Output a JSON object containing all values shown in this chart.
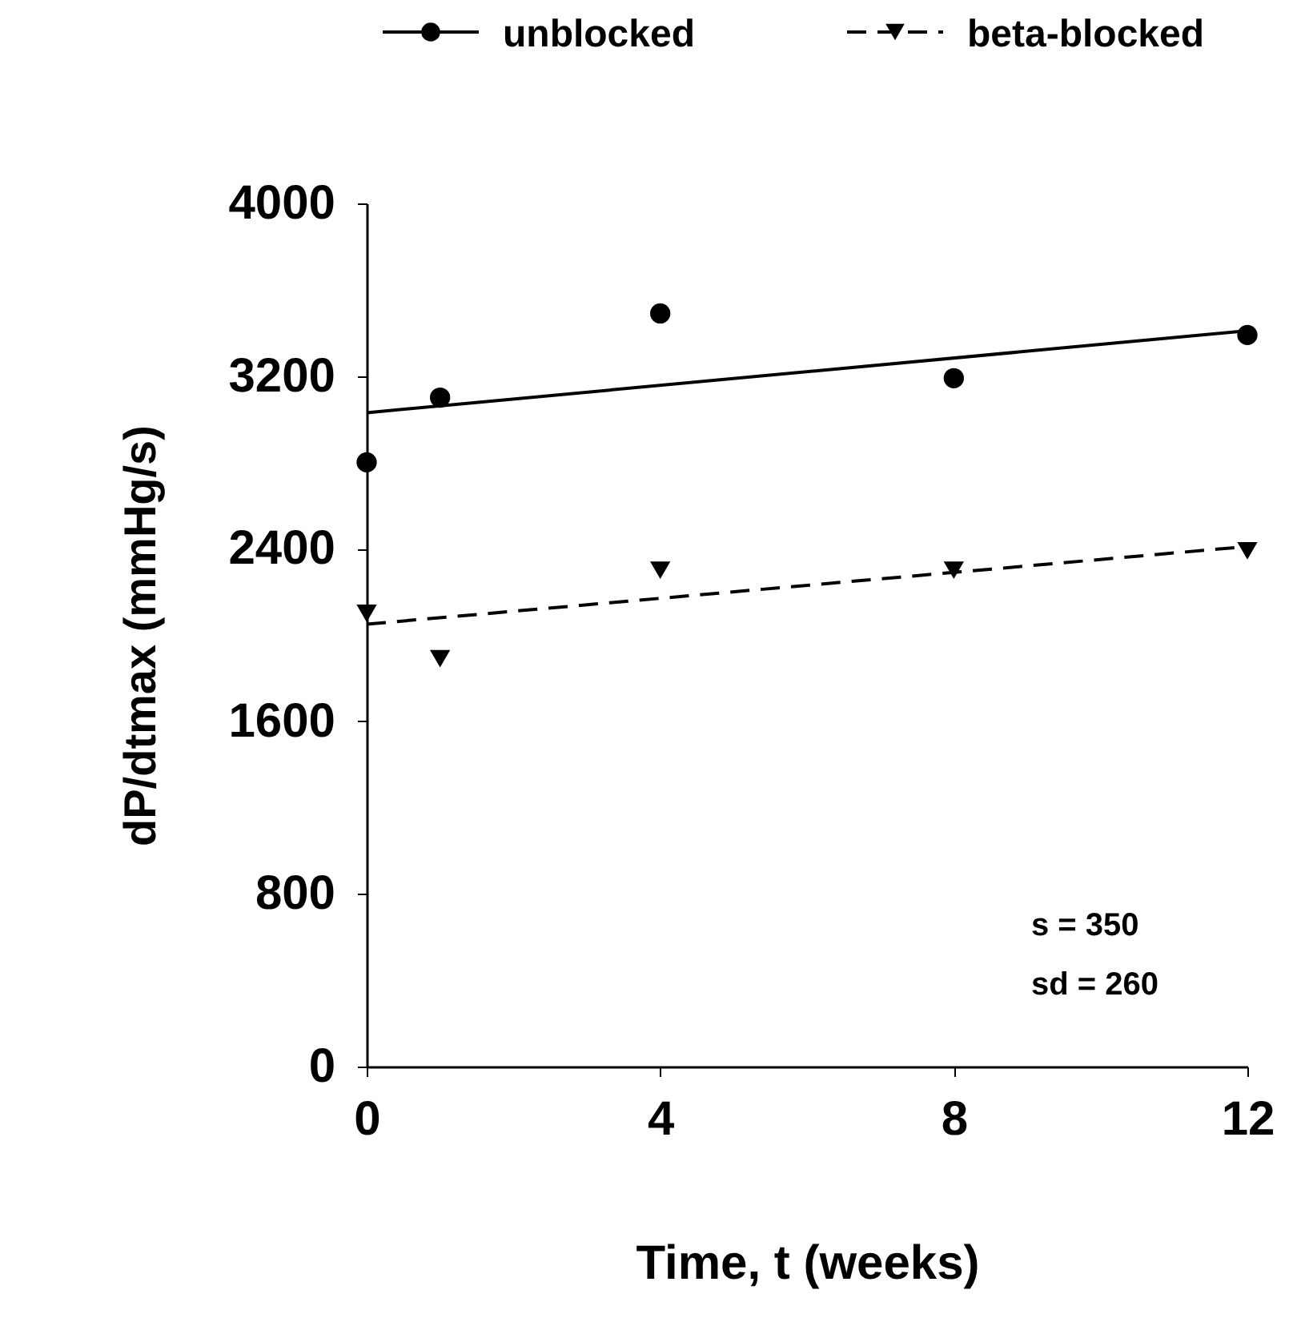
{
  "chart_data": {
    "type": "scatter",
    "xlabel": "Time, t (weeks)",
    "ylabel": "dP/dtmax (mmHg/s)",
    "xlim": [
      0,
      12
    ],
    "xticks": [
      0,
      4,
      8,
      12
    ],
    "ylim": [
      0,
      4000
    ],
    "yticks": [
      0,
      800,
      1600,
      2400,
      3200,
      4000
    ],
    "grid": false,
    "legend": "top right",
    "series": [
      {
        "name": "unblocked",
        "marker": "circle",
        "line_style": "solid",
        "color": "#000000",
        "x": [
          0,
          1,
          4,
          8,
          12
        ],
        "values": [
          2800,
          3100,
          3490,
          3190,
          3390
        ]
      },
      {
        "type": "line",
        "line_style": "solid",
        "color": "#000000",
        "x": [
          0,
          12
        ],
        "values": [
          3030,
          3410
        ]
      },
      {
        "name": "beta-blocked",
        "marker": "triangle",
        "line_style": "dashed",
        "color": "#000000",
        "x": [
          0,
          1,
          4,
          8,
          12
        ],
        "values": [
          2100,
          1890,
          2300,
          2300,
          2390
        ]
      },
      {
        "type": "line",
        "line_style": "dashed",
        "color": "#000000",
        "x": [
          0,
          12
        ],
        "values": [
          2050,
          2410
        ]
      }
    ],
    "annotations": [
      "s = 350",
      "sd = 260"
    ]
  }
}
